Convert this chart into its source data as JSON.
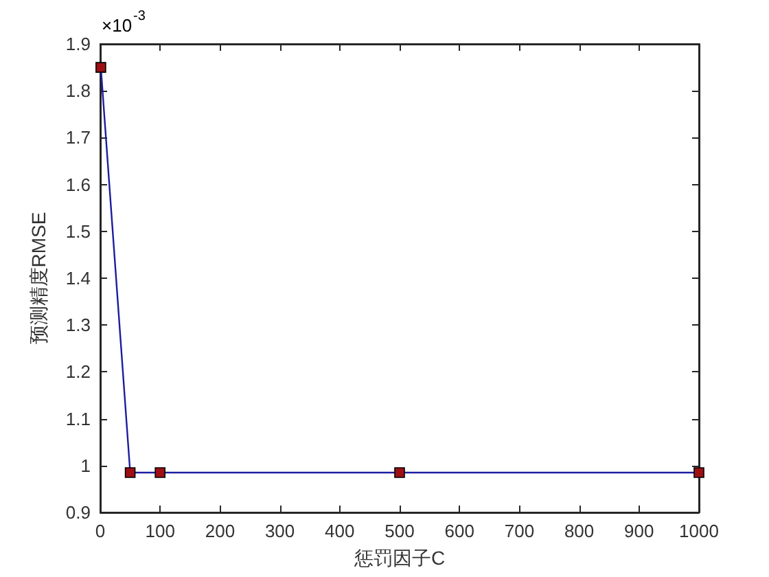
{
  "chart_data": {
    "type": "line",
    "xlabel": "惩罚因子C",
    "ylabel": "预测精度RMSE",
    "annotations": [
      "×10$^{-3}$"
    ],
    "x": [
      1,
      50,
      100,
      500,
      1000
    ],
    "series": [
      {
        "color": "#1c1ca0",
        "colors": [
          "#9e0f14",
          "#9e0f14",
          "#9e0f14",
          "#9e0f14",
          "#9e0f14"
        ],
        "values": [
          1.85,
          0.985,
          0.985,
          0.985,
          0.985
        ]
      }
    ],
    "xlim": [
      0,
      1000
    ],
    "xticks": [
      0,
      100,
      200,
      300,
      400,
      500,
      600,
      700,
      800,
      900,
      1000
    ],
    "ylim": [
      0.9,
      1.9
    ],
    "yticks": [
      0.9,
      1,
      1.1,
      1.2,
      1.3,
      1.4,
      1.5,
      1.6,
      1.7,
      1.8,
      1.9
    ],
    "grid": false,
    "marker": "square",
    "line_style": "solid"
  }
}
